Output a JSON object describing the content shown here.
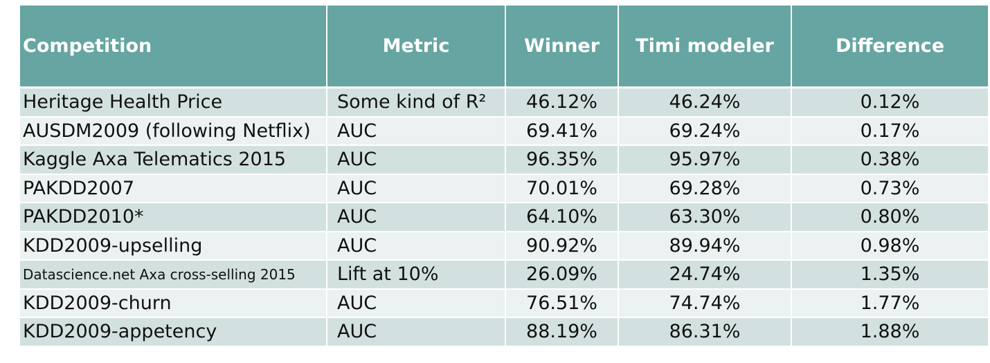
{
  "table": {
    "headers": {
      "competition": "Competition",
      "metric": "Metric",
      "winner": "Winner",
      "timi": "Timi modeler",
      "difference": "Difference"
    },
    "rows": [
      {
        "competition": "Heritage Health Price",
        "metric": "Some kind of R²",
        "winner": "46.12%",
        "timi": "46.24%",
        "difference": "0.12%"
      },
      {
        "competition": "AUSDM2009 (following Netflix)",
        "metric": "AUC",
        "winner": "69.41%",
        "timi": "69.24%",
        "difference": "0.17%"
      },
      {
        "competition": "Kaggle Axa Telematics 2015",
        "metric": "AUC",
        "winner": "96.35%",
        "timi": "95.97%",
        "difference": "0.38%"
      },
      {
        "competition": "PAKDD2007",
        "metric": "AUC",
        "winner": "70.01%",
        "timi": "69.28%",
        "difference": "0.73%"
      },
      {
        "competition": "PAKDD2010*",
        "metric": "AUC",
        "winner": "64.10%",
        "timi": "63.30%",
        "difference": "0.80%"
      },
      {
        "competition": "KDD2009-upselling",
        "metric": "AUC",
        "winner": "90.92%",
        "timi": "89.94%",
        "difference": "0.98%"
      },
      {
        "competition": "Datascience.net Axa cross-selling 2015",
        "metric": "Lift at 10%",
        "winner": "26.09%",
        "timi": "24.74%",
        "difference": "1.35%"
      },
      {
        "competition": "KDD2009-churn",
        "metric": "AUC",
        "winner": "76.51%",
        "timi": "74.74%",
        "difference": "1.77%"
      },
      {
        "competition": "KDD2009-appetency",
        "metric": "AUC",
        "winner": "88.19%",
        "timi": "86.31%",
        "difference": "1.88%"
      }
    ]
  },
  "colors": {
    "header_bg": "#66a5a1",
    "row_band_dark": "#d2e1e0",
    "row_band_light": "#ebf2f1"
  }
}
